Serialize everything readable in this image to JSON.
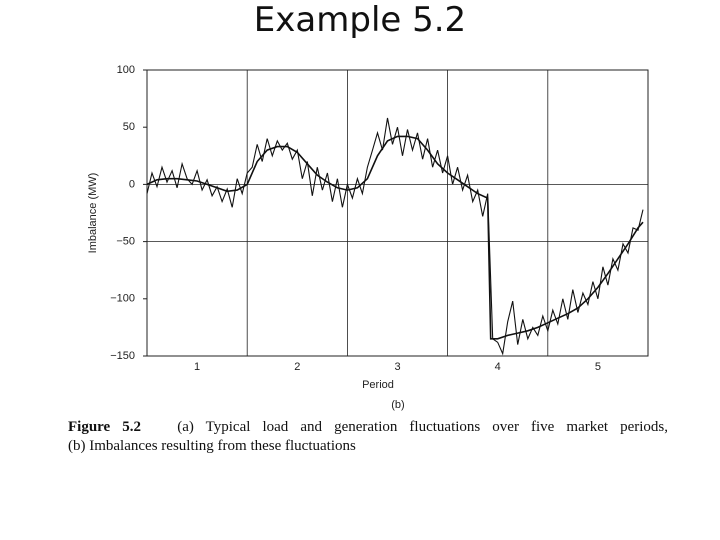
{
  "slide_title": "Example 5.2",
  "chart_data": {
    "type": "line",
    "xlabel": "Period",
    "ylabel": "Imbalance (MW)",
    "subtitle": "(b)",
    "xlim": [
      0.5,
      5.5
    ],
    "ylim": [
      -150,
      100
    ],
    "xticks": [
      1,
      2,
      3,
      4,
      5
    ],
    "xgrid_lines": [
      1.5,
      2.5,
      3.5,
      4.5
    ],
    "yticks": [
      {
        "value": -150,
        "label": "−150"
      },
      {
        "value": -100,
        "label": "−100"
      },
      {
        "value": -50,
        "label": "−50"
      },
      0,
      50,
      100
    ],
    "ygrid_lines": [
      0,
      -50
    ],
    "series": [
      {
        "color": "#111111",
        "x": [
          0.5,
          0.55,
          0.6,
          0.65,
          0.7,
          0.75,
          0.8,
          0.85,
          0.9,
          0.95,
          1.0,
          1.05,
          1.1,
          1.15,
          1.2,
          1.25,
          1.3,
          1.35,
          1.4,
          1.45,
          1.5,
          1.55,
          1.6,
          1.65,
          1.7,
          1.75,
          1.8,
          1.85,
          1.9,
          1.95,
          2.0,
          2.05,
          2.1,
          2.15,
          2.2,
          2.25,
          2.3,
          2.35,
          2.4,
          2.45,
          2.5,
          2.55,
          2.6,
          2.65,
          2.7,
          2.75,
          2.8,
          2.85,
          2.9,
          2.95,
          3.0,
          3.05,
          3.1,
          3.15,
          3.2,
          3.25,
          3.3,
          3.35,
          3.4,
          3.45,
          3.5,
          3.55,
          3.6,
          3.65,
          3.7,
          3.75,
          3.8,
          3.85,
          3.9,
          3.95,
          4.0,
          4.05,
          4.1,
          4.15,
          4.2,
          4.25,
          4.3,
          4.35,
          4.4,
          4.45,
          4.5,
          4.55,
          4.6,
          4.65,
          4.7,
          4.75,
          4.8,
          4.85,
          4.9,
          4.95,
          5.0,
          5.05,
          5.1,
          5.15,
          5.2,
          5.25,
          5.3,
          5.35,
          5.4,
          5.45
        ],
        "values": [
          -8,
          10,
          -2,
          15,
          2,
          12,
          -3,
          18,
          5,
          0,
          12,
          -5,
          4,
          -10,
          -2,
          -15,
          -4,
          -20,
          5,
          -8,
          10,
          15,
          35,
          20,
          40,
          25,
          38,
          30,
          36,
          22,
          30,
          5,
          20,
          -10,
          15,
          -5,
          10,
          -15,
          5,
          -20,
          0,
          -12,
          5,
          -8,
          15,
          30,
          45,
          30,
          58,
          35,
          50,
          25,
          48,
          30,
          45,
          22,
          40,
          15,
          30,
          10,
          25,
          0,
          15,
          -5,
          8,
          -15,
          -5,
          -28,
          -8,
          -135,
          -138,
          -148,
          -120,
          -102,
          -140,
          -118,
          -135,
          -125,
          -132,
          -115,
          -128,
          -110,
          -122,
          -100,
          -118,
          -92,
          -112,
          -95,
          -105,
          -85,
          -100,
          -72,
          -88,
          -65,
          -75,
          -52,
          -60,
          -38,
          -40,
          -22
        ]
      },
      {
        "color": "#111111",
        "x": [
          0.5,
          0.6,
          0.7,
          0.8,
          0.9,
          1.0,
          1.1,
          1.2,
          1.3,
          1.4,
          1.5,
          1.6,
          1.7,
          1.8,
          1.9,
          2.0,
          2.1,
          2.2,
          2.3,
          2.4,
          2.5,
          2.6,
          2.7,
          2.8,
          2.9,
          3.0,
          3.1,
          3.2,
          3.3,
          3.4,
          3.5,
          3.6,
          3.7,
          3.8,
          3.9,
          3.93,
          4.0,
          4.1,
          4.2,
          4.3,
          4.4,
          4.5,
          4.6,
          4.7,
          4.8,
          4.9,
          5.0,
          5.1,
          5.2,
          5.3,
          5.4,
          5.45
        ],
        "values": [
          0,
          4,
          5,
          5,
          4,
          3,
          0,
          -3,
          -6,
          -5,
          0,
          20,
          30,
          33,
          33,
          28,
          18,
          8,
          2,
          -3,
          -5,
          -3,
          5,
          25,
          38,
          42,
          42,
          40,
          30,
          18,
          10,
          4,
          -2,
          -8,
          -12,
          -135,
          -135,
          -132,
          -130,
          -128,
          -125,
          -121,
          -117,
          -113,
          -108,
          -100,
          -90,
          -78,
          -65,
          -52,
          -38,
          -33
        ]
      }
    ]
  },
  "caption": {
    "label": "Figure 5.2",
    "lines": [
      "(a) Typical load and generation fluctuations over five market periods,",
      "(b) Imbalances resulting from these fluctuations"
    ]
  }
}
